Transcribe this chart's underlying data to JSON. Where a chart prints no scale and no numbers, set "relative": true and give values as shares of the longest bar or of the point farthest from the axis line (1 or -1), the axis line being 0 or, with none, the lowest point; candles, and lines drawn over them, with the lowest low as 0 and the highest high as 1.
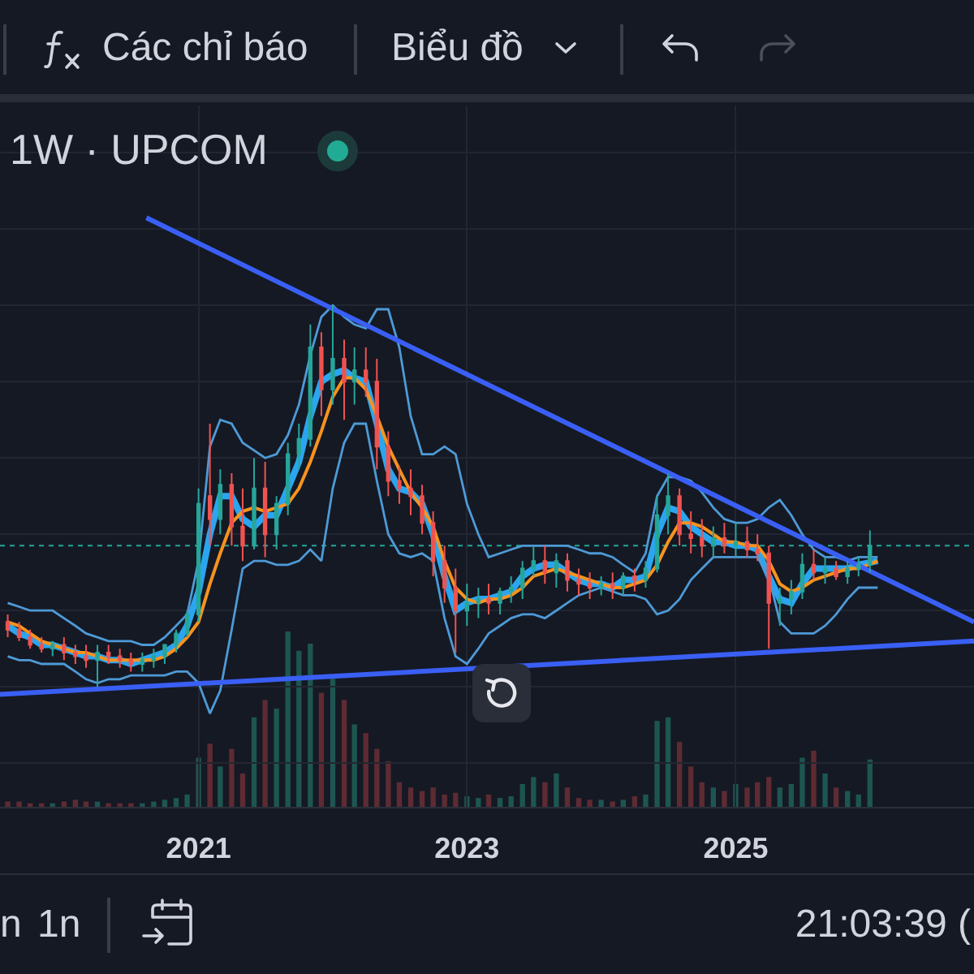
{
  "chart_data": [
    {
      "type": "candlestick",
      "title": "1W · UPCOM",
      "relative": true,
      "grid": true,
      "tick_labels": false,
      "x": [
        "2019-08",
        "2019-09",
        "2019-10",
        "2019-11",
        "2019-12",
        "2020-01",
        "2020-02",
        "2020-03",
        "2020-04",
        "2020-05",
        "2020-06",
        "2020-07",
        "2020-08",
        "2020-09",
        "2020-10",
        "2020-11",
        "2020-12",
        "2021-01",
        "2021-02",
        "2021-03",
        "2021-04",
        "2021-05",
        "2021-06",
        "2021-07",
        "2021-08",
        "2021-09",
        "2021-10",
        "2021-11",
        "2021-12",
        "2022-01",
        "2022-02",
        "2022-03",
        "2022-04",
        "2022-05",
        "2022-06",
        "2022-07",
        "2022-08",
        "2022-09",
        "2022-10",
        "2022-11",
        "2022-12",
        "2023-01",
        "2023-02",
        "2023-03",
        "2023-04",
        "2023-05",
        "2023-06",
        "2023-07",
        "2023-08",
        "2023-09",
        "2023-10",
        "2023-11",
        "2023-12",
        "2024-01",
        "2024-02",
        "2024-03",
        "2024-04",
        "2024-05",
        "2024-06",
        "2024-07",
        "2024-08",
        "2024-09",
        "2024-10",
        "2024-11",
        "2024-12",
        "2025-01",
        "2025-02",
        "2025-03",
        "2025-04",
        "2025-05",
        "2025-06",
        "2025-07",
        "2025-08",
        "2025-09",
        "2025-10",
        "2025-11",
        "2025-12",
        "2026-01"
      ],
      "xlim": [
        "2019-07-11",
        "2026-10-11"
      ],
      "xticks": [
        "2021",
        "2023",
        "2025"
      ],
      "ohlc": [
        [
          0.17,
          0.19,
          0.13,
          0.15
        ],
        [
          0.15,
          0.17,
          0.12,
          0.13
        ],
        [
          0.13,
          0.15,
          0.1,
          0.11
        ],
        [
          0.11,
          0.13,
          0.09,
          0.1
        ],
        [
          0.1,
          0.12,
          0.08,
          0.11
        ],
        [
          0.11,
          0.13,
          0.07,
          0.09
        ],
        [
          0.09,
          0.11,
          0.06,
          0.08
        ],
        [
          0.08,
          0.11,
          0.05,
          0.07
        ],
        [
          0.07,
          0.11,
          0,
          0.09
        ],
        [
          0.09,
          0.11,
          0.06,
          0.08
        ],
        [
          0.08,
          0.1,
          0.05,
          0.07
        ],
        [
          0.07,
          0.09,
          0.04,
          0.06
        ],
        [
          0.06,
          0.09,
          0.04,
          0.07
        ],
        [
          0.07,
          0.1,
          0.05,
          0.08
        ],
        [
          0.08,
          0.11,
          0.06,
          0.11
        ],
        [
          0.11,
          0.15,
          0.09,
          0.14
        ],
        [
          0.14,
          0.2,
          0.13,
          0.19
        ],
        [
          0.19,
          0.52,
          0.17,
          0.48
        ],
        [
          0.5,
          0.69,
          0.37,
          0.44
        ],
        [
          0.44,
          0.57,
          0.4,
          0.53
        ],
        [
          0.53,
          0.56,
          0.37,
          0.42
        ],
        [
          0.42,
          0.52,
          0.33,
          0.37
        ],
        [
          0.37,
          0.6,
          0.36,
          0.52
        ],
        [
          0.52,
          0.59,
          0.34,
          0.4
        ],
        [
          0.4,
          0.5,
          0.36,
          0.48
        ],
        [
          0.48,
          0.64,
          0.45,
          0.61
        ],
        [
          0.61,
          0.69,
          0.57,
          0.65
        ],
        [
          0.65,
          0.95,
          0.63,
          0.89
        ],
        [
          0.89,
          0.93,
          0.71,
          0.78
        ],
        [
          0.78,
          1,
          0.74,
          0.86
        ],
        [
          0.86,
          0.91,
          0.7,
          0.8
        ],
        [
          0.8,
          0.89,
          0.74,
          0.83
        ],
        [
          0.83,
          0.89,
          0.76,
          0.8
        ],
        [
          0.8,
          0.86,
          0.57,
          0.63
        ],
        [
          0.63,
          0.67,
          0.5,
          0.54
        ],
        [
          0.54,
          0.58,
          0.48,
          0.52
        ],
        [
          0.52,
          0.57,
          0.45,
          0.5
        ],
        [
          0.5,
          0.53,
          0.4,
          0.43
        ],
        [
          0.43,
          0.46,
          0.29,
          0.33
        ],
        [
          0.33,
          0.37,
          0.22,
          0.26
        ],
        [
          0.26,
          0.31,
          0.09,
          0.2
        ],
        [
          0.2,
          0.27,
          0.16,
          0.22
        ],
        [
          0.22,
          0.26,
          0.18,
          0.23
        ],
        [
          0.23,
          0.27,
          0.19,
          0.22
        ],
        [
          0.22,
          0.26,
          0.19,
          0.25
        ],
        [
          0.25,
          0.29,
          0.22,
          0.26
        ],
        [
          0.26,
          0.33,
          0.23,
          0.31
        ],
        [
          0.31,
          0.37,
          0.29,
          0.33
        ],
        [
          0.33,
          0.37,
          0.27,
          0.3
        ],
        [
          0.3,
          0.35,
          0.26,
          0.33
        ],
        [
          0.33,
          0.35,
          0.25,
          0.28
        ],
        [
          0.28,
          0.31,
          0.24,
          0.27
        ],
        [
          0.27,
          0.3,
          0.23,
          0.26
        ],
        [
          0.26,
          0.29,
          0.24,
          0.27
        ],
        [
          0.27,
          0.3,
          0.23,
          0.26
        ],
        [
          0.26,
          0.3,
          0.24,
          0.29
        ],
        [
          0.29,
          0.31,
          0.25,
          0.28
        ],
        [
          0.28,
          0.33,
          0.26,
          0.31
        ],
        [
          0.31,
          0.5,
          0.3,
          0.45
        ],
        [
          0.45,
          0.56,
          0.4,
          0.5
        ],
        [
          0.5,
          0.52,
          0.37,
          0.4
        ],
        [
          0.4,
          0.46,
          0.35,
          0.39
        ],
        [
          0.39,
          0.44,
          0.34,
          0.37
        ],
        [
          0.37,
          0.42,
          0.34,
          0.39
        ],
        [
          0.39,
          0.43,
          0.35,
          0.37
        ],
        [
          0.37,
          0.43,
          0.34,
          0.38
        ],
        [
          0.38,
          0.42,
          0.34,
          0.36
        ],
        [
          0.36,
          0.4,
          0.33,
          0.35
        ],
        [
          0.35,
          0.37,
          0.1,
          0.22
        ],
        [
          0.22,
          0.26,
          0.16,
          0.23
        ],
        [
          0.23,
          0.28,
          0.19,
          0.25
        ],
        [
          0.25,
          0.35,
          0.23,
          0.32
        ],
        [
          0.32,
          0.36,
          0.28,
          0.3
        ],
        [
          0.3,
          0.34,
          0.27,
          0.31
        ],
        [
          0.31,
          0.33,
          0.28,
          0.29
        ],
        [
          0.29,
          0.33,
          0.27,
          0.31
        ],
        [
          0.31,
          0.34,
          0.29,
          0.32
        ],
        [
          0.32,
          0.41,
          0.3,
          0.37
        ]
      ],
      "colors": [
        "#ef5350",
        "#ef5350",
        "#ef5350",
        "#ef5350",
        "#26a69a",
        "#ef5350",
        "#ef5350",
        "#ef5350",
        "#26a69a",
        "#ef5350",
        "#ef5350",
        "#ef5350",
        "#26a69a",
        "#26a69a",
        "#26a69a",
        "#26a69a",
        "#26a69a",
        "#26a69a",
        "#ef5350",
        "#26a69a",
        "#ef5350",
        "#ef5350",
        "#26a69a",
        "#ef5350",
        "#26a69a",
        "#26a69a",
        "#26a69a",
        "#26a69a",
        "#ef5350",
        "#26a69a",
        "#ef5350",
        "#26a69a",
        "#ef5350",
        "#ef5350",
        "#ef5350",
        "#ef5350",
        "#ef5350",
        "#ef5350",
        "#ef5350",
        "#ef5350",
        "#ef5350",
        "#26a69a",
        "#26a69a",
        "#ef5350",
        "#26a69a",
        "#26a69a",
        "#26a69a",
        "#26a69a",
        "#ef5350",
        "#26a69a",
        "#ef5350",
        "#ef5350",
        "#ef5350",
        "#26a69a",
        "#ef5350",
        "#26a69a",
        "#ef5350",
        "#26a69a",
        "#26a69a",
        "#26a69a",
        "#ef5350",
        "#ef5350",
        "#ef5350",
        "#26a69a",
        "#ef5350",
        "#26a69a",
        "#ef5350",
        "#ef5350",
        "#ef5350",
        "#26a69a",
        "#26a69a",
        "#26a69a",
        "#ef5350",
        "#26a69a",
        "#ef5350",
        "#26a69a",
        "#26a69a",
        "#26a69a"
      ],
      "series": [
        {
          "type": "line",
          "color": "#2ba5f0",
          "x": [
            "2019-08",
            "2019-09",
            "2019-10",
            "2019-11",
            "2019-12",
            "2020-01",
            "2020-02",
            "2020-03",
            "2020-04",
            "2020-05",
            "2020-06",
            "2020-07",
            "2020-08",
            "2020-09",
            "2020-10",
            "2020-11",
            "2020-12",
            "2021-01",
            "2021-02",
            "2021-03",
            "2021-04",
            "2021-05",
            "2021-06",
            "2021-07",
            "2021-08",
            "2021-09",
            "2021-10",
            "2021-11",
            "2021-12",
            "2022-01",
            "2022-02",
            "2022-03",
            "2022-04",
            "2022-05",
            "2022-06",
            "2022-07",
            "2022-08",
            "2022-09",
            "2022-10",
            "2022-11",
            "2022-12",
            "2023-01",
            "2023-02",
            "2023-03",
            "2023-04",
            "2023-05",
            "2023-06",
            "2023-07",
            "2023-08",
            "2023-09",
            "2023-10",
            "2023-11",
            "2023-12",
            "2024-01",
            "2024-02",
            "2024-03",
            "2024-04",
            "2024-05",
            "2024-06",
            "2024-07",
            "2024-08",
            "2024-09",
            "2024-10",
            "2024-11",
            "2024-12",
            "2025-01",
            "2025-02",
            "2025-03",
            "2025-04",
            "2025-05",
            "2025-06",
            "2025-07",
            "2025-08",
            "2025-09",
            "2025-10",
            "2025-11",
            "2025-12",
            "2026-01-22"
          ],
          "values": [
            0.16,
            0.14,
            0.13,
            0.11,
            0.11,
            0.1,
            0.09,
            0.08,
            0.08,
            0.07,
            0.07,
            0.06,
            0.07,
            0.08,
            0.09,
            0.11,
            0.16,
            0.25,
            0.4,
            0.5,
            0.5,
            0.44,
            0.42,
            0.45,
            0.45,
            0.52,
            0.59,
            0.71,
            0.8,
            0.82,
            0.83,
            0.81,
            0.8,
            0.69,
            0.57,
            0.52,
            0.51,
            0.48,
            0.4,
            0.29,
            0.2,
            0.22,
            0.23,
            0.23,
            0.24,
            0.25,
            0.29,
            0.31,
            0.32,
            0.32,
            0.3,
            0.28,
            0.27,
            0.27,
            0.26,
            0.28,
            0.28,
            0.29,
            0.4,
            0.47,
            0.46,
            0.42,
            0.4,
            0.38,
            0.38,
            0.37,
            0.37,
            0.36,
            0.29,
            0.23,
            0.22,
            0.27,
            0.31,
            0.31,
            0.31,
            0.31,
            0.32,
            0.33
          ]
        },
        {
          "type": "line",
          "color": "#f7931e",
          "x": [
            "2019-08",
            "2019-09",
            "2019-10",
            "2019-11",
            "2019-12",
            "2020-01",
            "2020-02",
            "2020-03",
            "2020-04",
            "2020-05",
            "2020-06",
            "2020-07",
            "2020-08",
            "2020-09",
            "2020-10",
            "2020-11",
            "2020-12",
            "2021-01",
            "2021-02",
            "2021-03",
            "2021-04",
            "2021-05",
            "2021-06",
            "2021-07",
            "2021-08",
            "2021-09",
            "2021-10",
            "2021-11",
            "2021-12",
            "2022-01",
            "2022-02",
            "2022-03",
            "2022-04",
            "2022-05",
            "2022-06",
            "2022-07",
            "2022-08",
            "2022-09",
            "2022-10",
            "2022-11",
            "2022-12",
            "2023-01",
            "2023-02",
            "2023-03",
            "2023-04",
            "2023-05",
            "2023-06",
            "2023-07",
            "2023-08",
            "2023-09",
            "2023-10",
            "2023-11",
            "2023-12",
            "2024-01",
            "2024-02",
            "2024-03",
            "2024-04",
            "2024-05",
            "2024-06",
            "2024-07",
            "2024-08",
            "2024-09",
            "2024-10",
            "2024-11",
            "2024-12",
            "2025-01",
            "2025-02",
            "2025-03",
            "2025-04",
            "2025-05",
            "2025-06",
            "2025-07",
            "2025-08",
            "2025-09",
            "2025-10",
            "2025-11",
            "2025-12",
            "2026-01-22"
          ],
          "values": [
            0.17,
            0.16,
            0.14,
            0.12,
            0.11,
            0.1,
            0.09,
            0.09,
            0.08,
            0.07,
            0.07,
            0.07,
            0.07,
            0.07,
            0.08,
            0.1,
            0.13,
            0.17,
            0.27,
            0.35,
            0.43,
            0.46,
            0.47,
            0.46,
            0.47,
            0.48,
            0.52,
            0.59,
            0.67,
            0.76,
            0.81,
            0.81,
            0.78,
            0.71,
            0.63,
            0.57,
            0.51,
            0.47,
            0.42,
            0.33,
            0.26,
            0.23,
            0.22,
            0.23,
            0.23,
            0.24,
            0.26,
            0.29,
            0.3,
            0.31,
            0.3,
            0.29,
            0.28,
            0.27,
            0.26,
            0.26,
            0.27,
            0.28,
            0.32,
            0.38,
            0.43,
            0.43,
            0.42,
            0.4,
            0.38,
            0.38,
            0.37,
            0.37,
            0.33,
            0.27,
            0.25,
            0.26,
            0.28,
            0.29,
            0.3,
            0.31,
            0.31,
            0.33
          ]
        },
        {
          "type": "line",
          "color": "#4e9ad6",
          "x": [
            "2019-08",
            "2019-09",
            "2019-10",
            "2019-11",
            "2019-12",
            "2020-01",
            "2020-02",
            "2020-03",
            "2020-04",
            "2020-05",
            "2020-06",
            "2020-07",
            "2020-08",
            "2020-09",
            "2020-10",
            "2020-11",
            "2020-12",
            "2021-01",
            "2021-02",
            "2021-03",
            "2021-04",
            "2021-05",
            "2021-06",
            "2021-07",
            "2021-08",
            "2021-09",
            "2021-10",
            "2021-11",
            "2021-12",
            "2022-01",
            "2022-02",
            "2022-03",
            "2022-04",
            "2022-05",
            "2022-06",
            "2022-07",
            "2022-08",
            "2022-09",
            "2022-10",
            "2022-11",
            "2022-12",
            "2023-01",
            "2023-02",
            "2023-03",
            "2023-04",
            "2023-05",
            "2023-06",
            "2023-07",
            "2023-08",
            "2023-09",
            "2023-10",
            "2023-11",
            "2023-12",
            "2024-01",
            "2024-02",
            "2024-03",
            "2024-04",
            "2024-05",
            "2024-06",
            "2024-07",
            "2024-08",
            "2024-09",
            "2024-10",
            "2024-11",
            "2024-12",
            "2025-01",
            "2025-02",
            "2025-03",
            "2025-04",
            "2025-05",
            "2025-06",
            "2025-07",
            "2025-08",
            "2025-09",
            "2025-10",
            "2025-11",
            "2025-12",
            "2026-01-22"
          ],
          "values": [
            0.22,
            0.21,
            0.2,
            0.2,
            0.2,
            0.18,
            0.16,
            0.14,
            0.13,
            0.12,
            0.12,
            0.12,
            0.11,
            0.11,
            0.13,
            0.16,
            0.19,
            0.33,
            0.63,
            0.7,
            0.69,
            0.64,
            0.62,
            0.6,
            0.61,
            0.66,
            0.74,
            0.87,
            0.97,
            1.0,
            0.97,
            0.95,
            0.94,
            0.99,
            0.99,
            0.89,
            0.71,
            0.61,
            0.61,
            0.63,
            0.61,
            0.48,
            0.4,
            0.34,
            0.35,
            0.36,
            0.37,
            0.37,
            0.37,
            0.37,
            0.37,
            0.36,
            0.35,
            0.35,
            0.34,
            0.32,
            0.3,
            0.35,
            0.5,
            0.55,
            0.55,
            0.54,
            0.51,
            0.47,
            0.44,
            0.43,
            0.43,
            0.44,
            0.47,
            0.49,
            0.45,
            0.4,
            0.36,
            0.34,
            0.34,
            0.33,
            0.34,
            0.34
          ]
        },
        {
          "type": "line",
          "color": "#4e9ad6",
          "x": [
            "2019-08",
            "2019-09",
            "2019-10",
            "2019-11",
            "2019-12",
            "2020-01",
            "2020-02",
            "2020-03",
            "2020-04",
            "2020-05",
            "2020-06",
            "2020-07",
            "2020-08",
            "2020-09",
            "2020-10",
            "2020-11",
            "2020-12",
            "2021-01",
            "2021-02",
            "2021-03",
            "2021-04",
            "2021-05",
            "2021-06",
            "2021-07",
            "2021-08",
            "2021-09",
            "2021-10",
            "2021-11",
            "2021-12",
            "2022-01",
            "2022-02",
            "2022-03",
            "2022-04",
            "2022-05",
            "2022-06",
            "2022-07",
            "2022-08",
            "2022-09",
            "2022-10",
            "2022-11",
            "2022-12",
            "2023-01",
            "2023-02",
            "2023-03",
            "2023-04",
            "2023-05",
            "2023-06",
            "2023-07",
            "2023-08",
            "2023-09",
            "2023-10",
            "2023-11",
            "2023-12",
            "2024-01",
            "2024-02",
            "2024-03",
            "2024-04",
            "2024-05",
            "2024-06",
            "2024-07",
            "2024-08",
            "2024-09",
            "2024-10",
            "2024-11",
            "2024-12",
            "2025-01",
            "2025-02",
            "2025-03",
            "2025-04",
            "2025-05",
            "2025-06",
            "2025-07",
            "2025-08",
            "2025-09",
            "2025-10",
            "2025-11",
            "2025-12",
            "2026-01-22"
          ],
          "values": [
            0.08,
            0.07,
            0.07,
            0.06,
            0.06,
            0.06,
            0.04,
            0.02,
            0.01,
            0.02,
            0.02,
            0.03,
            0.03,
            0.03,
            0.03,
            0.04,
            0.04,
            0.01,
            -0.07,
            -0.01,
            0.15,
            0.31,
            0.33,
            0.33,
            0.32,
            0.32,
            0.33,
            0.36,
            0.33,
            0.52,
            0.64,
            0.69,
            0.69,
            0.54,
            0.4,
            0.35,
            0.34,
            0.35,
            0.33,
            0.18,
            0.08,
            0.06,
            0.1,
            0.14,
            0.16,
            0.18,
            0.19,
            0.19,
            0.18,
            0.2,
            0.22,
            0.24,
            0.25,
            0.26,
            0.25,
            0.24,
            0.24,
            0.23,
            0.19,
            0.2,
            0.23,
            0.28,
            0.31,
            0.34,
            0.34,
            0.34,
            0.34,
            0.34,
            0.29,
            0.17,
            0.14,
            0.14,
            0.14,
            0.16,
            0.19,
            0.23,
            0.26,
            0.26
          ]
        },
        {
          "type": "line",
          "color": "#3a5ff5",
          "x": [
            "2020-08-12",
            "2026-10-11"
          ],
          "values": [
            1.23,
            0.17
          ]
        },
        {
          "type": "line",
          "color": "#3a5ff5",
          "x": [
            "2019-07-11",
            "2026-10-11"
          ],
          "values": [
            -0.02,
            0.12
          ]
        }
      ],
      "ref_lines": [
        {
          "axis": "y",
          "value": 0.37,
          "color": "#26a69a",
          "line_style": "dotted"
        }
      ],
      "annotations": [
        "Các chỉ báo",
        "Biểu đồ",
        "n",
        "1n",
        "21:03:39 ("
      ]
    },
    {
      "type": "bar",
      "relative": true,
      "x": [
        "2019-08",
        "2019-09",
        "2019-10",
        "2019-11",
        "2019-12",
        "2020-01",
        "2020-02",
        "2020-03",
        "2020-04",
        "2020-05",
        "2020-06",
        "2020-07",
        "2020-08",
        "2020-09",
        "2020-10",
        "2020-11",
        "2020-12",
        "2021-01",
        "2021-02",
        "2021-03",
        "2021-04",
        "2021-05",
        "2021-06",
        "2021-07",
        "2021-08",
        "2021-09",
        "2021-10",
        "2021-11",
        "2021-12",
        "2022-01",
        "2022-02",
        "2022-03",
        "2022-04",
        "2022-05",
        "2022-06",
        "2022-07",
        "2022-08",
        "2022-09",
        "2022-10",
        "2022-11",
        "2022-12",
        "2023-01",
        "2023-02",
        "2023-03",
        "2023-04",
        "2023-05",
        "2023-06",
        "2023-07",
        "2023-08",
        "2023-09",
        "2023-10",
        "2023-11",
        "2023-12",
        "2024-01",
        "2024-02",
        "2024-03",
        "2024-04",
        "2024-05",
        "2024-06",
        "2024-07",
        "2024-08",
        "2024-09",
        "2024-10",
        "2024-11",
        "2024-12",
        "2025-01",
        "2025-02",
        "2025-03",
        "2025-04",
        "2025-05",
        "2025-06",
        "2025-07",
        "2025-08",
        "2025-09",
        "2025-10",
        "2025-11",
        "2025-12",
        "2026-01"
      ],
      "xlim": [
        "2019-07-11",
        "2026-10-11"
      ],
      "xticks": [
        "2021",
        "2023",
        "2025"
      ],
      "values": [
        0.03,
        0.03,
        0.02,
        0.02,
        0.02,
        0.03,
        0.04,
        0.03,
        0.03,
        0.02,
        0.02,
        0.02,
        0.02,
        0.03,
        0.04,
        0.05,
        0.07,
        0.28,
        0.36,
        0.23,
        0.33,
        0.19,
        0.51,
        0.61,
        0.56,
        1,
        0.89,
        0.93,
        0.65,
        0.73,
        0.61,
        0.47,
        0.42,
        0.33,
        0.26,
        0.14,
        0.11,
        0.09,
        0.11,
        0.07,
        0.08,
        0.06,
        0.05,
        0.07,
        0.05,
        0.06,
        0.13,
        0.17,
        0.14,
        0.19,
        0.11,
        0.05,
        0.04,
        0.04,
        0.03,
        0.04,
        0.06,
        0.07,
        0.49,
        0.51,
        0.37,
        0.23,
        0.14,
        0.11,
        0.09,
        0.13,
        0.11,
        0.14,
        0.17,
        0.11,
        0.13,
        0.28,
        0.32,
        0.19,
        0.11,
        0.09,
        0.07,
        0.27
      ],
      "colors": [
        "#5e2b33",
        "#5e2b33",
        "#5e2b33",
        "#5e2b33",
        "#1d5650",
        "#5e2b33",
        "#5e2b33",
        "#5e2b33",
        "#1d5650",
        "#5e2b33",
        "#5e2b33",
        "#5e2b33",
        "#1d5650",
        "#1d5650",
        "#1d5650",
        "#1d5650",
        "#1d5650",
        "#1d5650",
        "#5e2b33",
        "#1d5650",
        "#5e2b33",
        "#5e2b33",
        "#1d5650",
        "#5e2b33",
        "#1d5650",
        "#1d5650",
        "#1d5650",
        "#1d5650",
        "#5e2b33",
        "#1d5650",
        "#5e2b33",
        "#1d5650",
        "#5e2b33",
        "#5e2b33",
        "#5e2b33",
        "#5e2b33",
        "#5e2b33",
        "#5e2b33",
        "#5e2b33",
        "#5e2b33",
        "#5e2b33",
        "#1d5650",
        "#1d5650",
        "#5e2b33",
        "#1d5650",
        "#1d5650",
        "#1d5650",
        "#1d5650",
        "#5e2b33",
        "#1d5650",
        "#5e2b33",
        "#5e2b33",
        "#5e2b33",
        "#1d5650",
        "#5e2b33",
        "#1d5650",
        "#5e2b33",
        "#1d5650",
        "#1d5650",
        "#1d5650",
        "#5e2b33",
        "#5e2b33",
        "#5e2b33",
        "#1d5650",
        "#5e2b33",
        "#1d5650",
        "#5e2b33",
        "#5e2b33",
        "#5e2b33",
        "#1d5650",
        "#1d5650",
        "#1d5650",
        "#5e2b33",
        "#1d5650",
        "#5e2b33",
        "#1d5650",
        "#1d5650",
        "#1d5650"
      ]
    }
  ]
}
